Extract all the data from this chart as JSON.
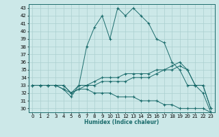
{
  "xlabel": "Humidex (Indice chaleur)",
  "ylabel": "",
  "bg_color": "#cce8e8",
  "grid_color": "#aacfcf",
  "line_color": "#1a6b6b",
  "xlim": [
    -0.5,
    23.5
  ],
  "ylim": [
    29.5,
    43.5
  ],
  "xticks": [
    0,
    1,
    2,
    3,
    4,
    5,
    6,
    7,
    8,
    9,
    10,
    11,
    12,
    13,
    14,
    15,
    16,
    17,
    18,
    19,
    20,
    21,
    22,
    23
  ],
  "yticks": [
    30,
    31,
    32,
    33,
    34,
    35,
    36,
    37,
    38,
    39,
    40,
    41,
    42,
    43
  ],
  "series": [
    {
      "x": [
        0,
        1,
        2,
        3,
        4,
        5,
        6,
        7,
        8,
        9,
        10,
        11,
        12,
        13,
        14,
        15,
        16,
        17,
        18,
        19,
        20,
        21,
        22,
        23
      ],
      "y": [
        33,
        33,
        33,
        33,
        32.5,
        31.5,
        33,
        38,
        40.5,
        42,
        39,
        43,
        42,
        43,
        42,
        41,
        39,
        38.5,
        36,
        35,
        33,
        33,
        32,
        29.5
      ]
    },
    {
      "x": [
        0,
        1,
        2,
        3,
        4,
        5,
        6,
        7,
        8,
        9,
        10,
        11,
        12,
        13,
        14,
        15,
        16,
        17,
        18,
        19,
        20,
        21,
        22,
        23
      ],
      "y": [
        33,
        33,
        33,
        33,
        32.5,
        32,
        32.5,
        33,
        33.5,
        34,
        34,
        34,
        34.5,
        34.5,
        34.5,
        34.5,
        35,
        35,
        35,
        35.5,
        35,
        33,
        33,
        30
      ]
    },
    {
      "x": [
        0,
        1,
        2,
        3,
        4,
        5,
        6,
        7,
        8,
        9,
        10,
        11,
        12,
        13,
        14,
        15,
        16,
        17,
        18,
        19,
        20,
        21,
        22,
        23
      ],
      "y": [
        33,
        33,
        33,
        33,
        33,
        32,
        33,
        33,
        33,
        33.5,
        33.5,
        33.5,
        33.5,
        34,
        34,
        34,
        34.5,
        35,
        35.5,
        36,
        35,
        33,
        33,
        30
      ]
    },
    {
      "x": [
        0,
        1,
        2,
        3,
        4,
        5,
        6,
        7,
        8,
        9,
        10,
        11,
        12,
        13,
        14,
        15,
        16,
        17,
        18,
        19,
        20,
        21,
        22,
        23
      ],
      "y": [
        33,
        33,
        33,
        33,
        33,
        32,
        32.5,
        32.5,
        32,
        32,
        32,
        31.5,
        31.5,
        31.5,
        31,
        31,
        31,
        30.5,
        30.5,
        30,
        30,
        30,
        30,
        29.5
      ]
    }
  ]
}
